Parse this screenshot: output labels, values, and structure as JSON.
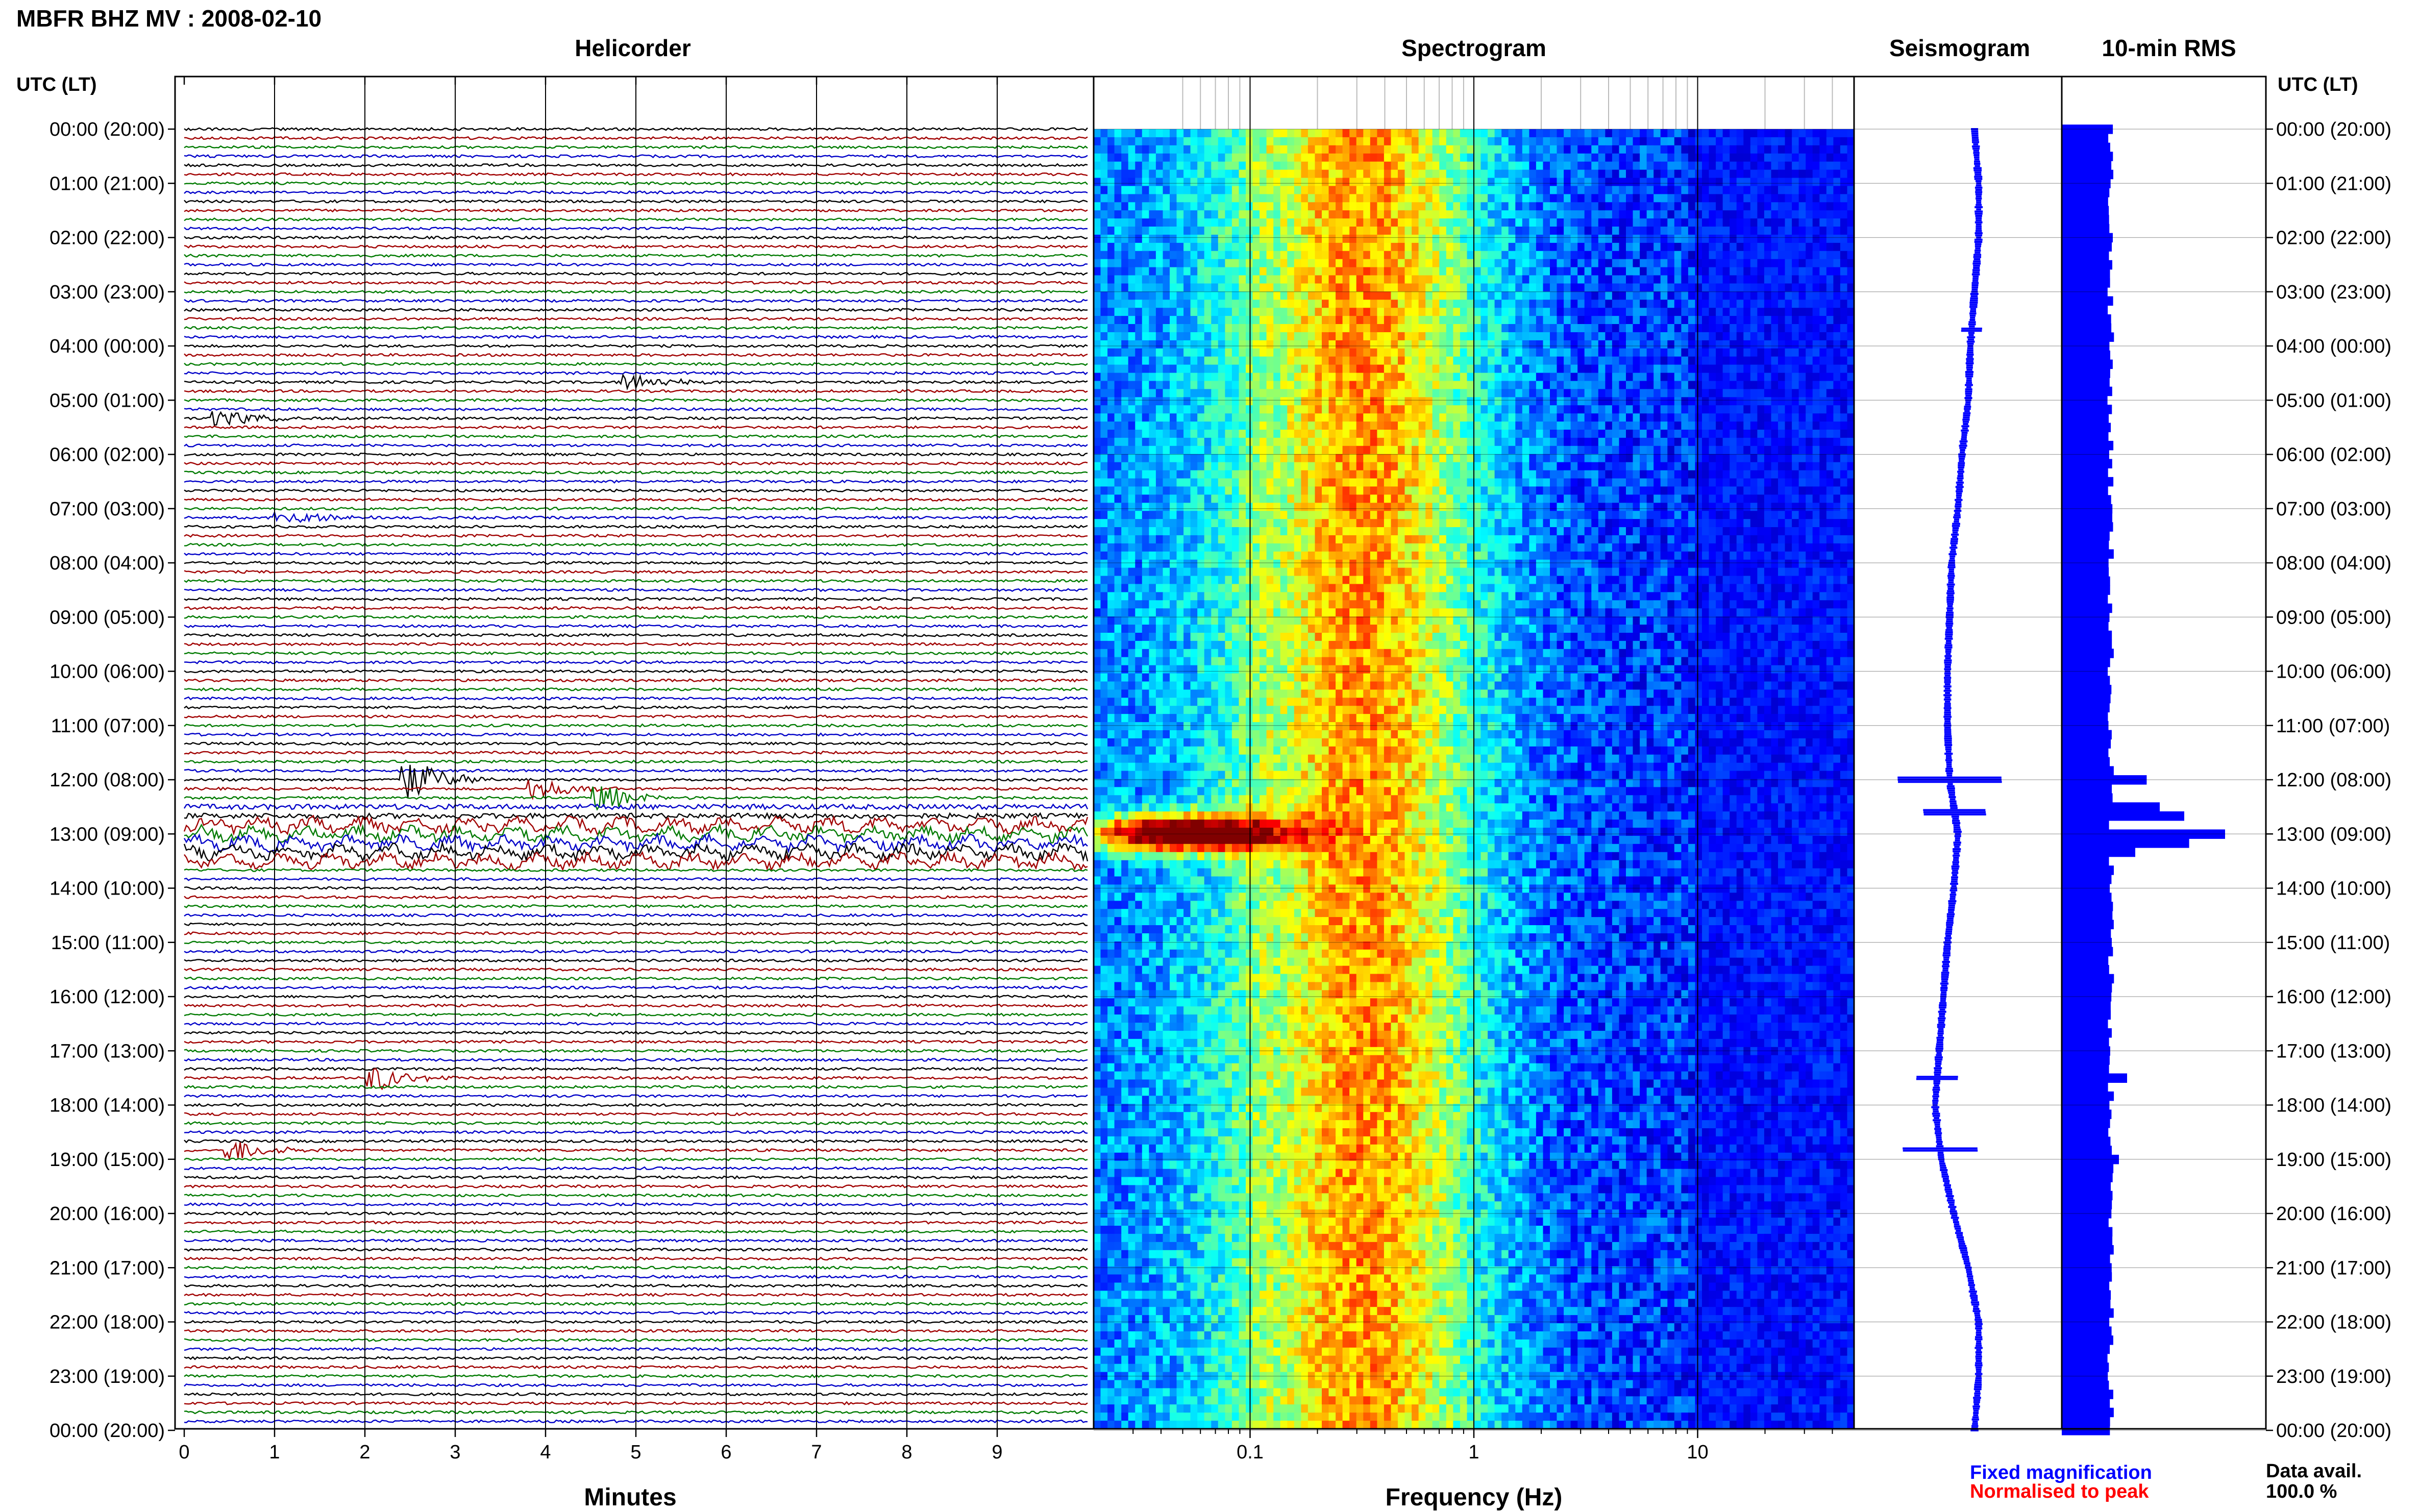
{
  "header": {
    "title": "MBFR BHZ MV : 2008-02-10"
  },
  "panels": {
    "helicorder": "Helicorder",
    "spectrogram": "Spectrogram",
    "seismogram": "Seismogram",
    "rms": "10-min RMS"
  },
  "axes": {
    "time_label_left": "UTC (LT)",
    "time_label_right": "UTC (LT)",
    "minutes_label": "Minutes",
    "frequency_label": "Frequency (Hz)"
  },
  "legend": {
    "fixed": "Fixed magnification",
    "normalised": "Normalised to peak",
    "fixed_color": "#0000ff",
    "normalised_color": "#ff0000"
  },
  "data_avail": {
    "label": "Data avail.",
    "value": "100.0 %"
  },
  "colors": {
    "trace_cycle": [
      "#000000",
      "#a00000",
      "#007a00",
      "#0000c8"
    ],
    "rms_bar": "#0000ff",
    "seismogram": "#0000ff"
  },
  "chart_data": {
    "type": "helicorder",
    "title": "MBFR BHZ MV : 2008-02-10",
    "time_ticks": [
      "00:00 (20:00)",
      "01:00 (21:00)",
      "02:00 (22:00)",
      "03:00 (23:00)",
      "04:00 (00:00)",
      "05:00 (01:00)",
      "06:00 (02:00)",
      "07:00 (03:00)",
      "08:00 (04:00)",
      "09:00 (05:00)",
      "10:00 (06:00)",
      "11:00 (07:00)",
      "12:00 (08:00)",
      "13:00 (09:00)",
      "14:00 (10:00)",
      "15:00 (11:00)",
      "16:00 (12:00)",
      "17:00 (13:00)",
      "18:00 (14:00)",
      "19:00 (15:00)",
      "20:00 (16:00)",
      "21:00 (17:00)",
      "22:00 (18:00)",
      "23:00 (19:00)",
      "00:00 (20:00)"
    ],
    "helicorder": {
      "minutes_ticks": [
        "0",
        "1",
        "2",
        "3",
        "4",
        "5",
        "6",
        "7",
        "8",
        "9"
      ],
      "xlim": [
        0,
        10
      ],
      "rows_per_hour": 6,
      "events": [
        {
          "hour": 12.0,
          "minute": 2.6,
          "amplitude": 0.9,
          "color": "#000000"
        },
        {
          "hour": 12.17,
          "minute": 4.0,
          "amplitude": 0.5,
          "color": "#a00000"
        },
        {
          "hour": 12.4,
          "minute": 4.7,
          "amplitude": 0.6,
          "color": "#007a00"
        },
        {
          "hour": 17.5,
          "minute": 2.2,
          "amplitude": 0.6,
          "color": "#a00000"
        },
        {
          "hour": 18.83,
          "minute": 0.65,
          "amplitude": 0.5,
          "color": "#a00000"
        },
        {
          "hour": 7.17,
          "minute": 1.2,
          "amplitude": 0.4,
          "color": "#007a00"
        },
        {
          "hour": 4.67,
          "minute": 5.0,
          "amplitude": 0.4,
          "color": "#000000"
        },
        {
          "hour": 5.33,
          "minute": 0.5,
          "amplitude": 0.4,
          "color": "#000000"
        }
      ]
    },
    "spectrogram": {
      "x_scale": "log",
      "xlim": [
        0.02,
        50
      ],
      "xticks": [
        "0.1",
        "1",
        "10"
      ],
      "colormap": "jet"
    },
    "seismogram": {
      "centre_offsets": [
        0.58,
        0.6,
        0.6,
        0.58,
        0.56,
        0.55,
        0.52,
        0.5,
        0.47,
        0.46,
        0.45,
        0.45,
        0.46,
        0.5,
        0.48,
        0.45,
        0.43,
        0.41,
        0.39,
        0.42,
        0.48,
        0.55,
        0.6,
        0.6,
        0.58
      ],
      "spikes": [
        {
          "hour": 12.0,
          "width": 0.25
        },
        {
          "hour": 12.6,
          "width": 0.15
        },
        {
          "hour": 17.5,
          "width": 0.1
        },
        {
          "hour": 18.83,
          "width": 0.18
        },
        {
          "hour": 3.7,
          "width": 0.05
        }
      ]
    },
    "rms": {
      "interval_minutes": 10,
      "peak_hour": 13.0,
      "baseline": 0.3,
      "peaks": [
        {
          "hour": 12.0,
          "value": 0.52
        },
        {
          "hour": 12.5,
          "value": 0.6
        },
        {
          "hour": 12.67,
          "value": 0.75
        },
        {
          "hour": 13.0,
          "value": 1.0
        },
        {
          "hour": 13.17,
          "value": 0.78
        },
        {
          "hour": 13.33,
          "value": 0.45
        },
        {
          "hour": 17.5,
          "value": 0.4
        },
        {
          "hour": 19.0,
          "value": 0.35
        }
      ]
    }
  }
}
